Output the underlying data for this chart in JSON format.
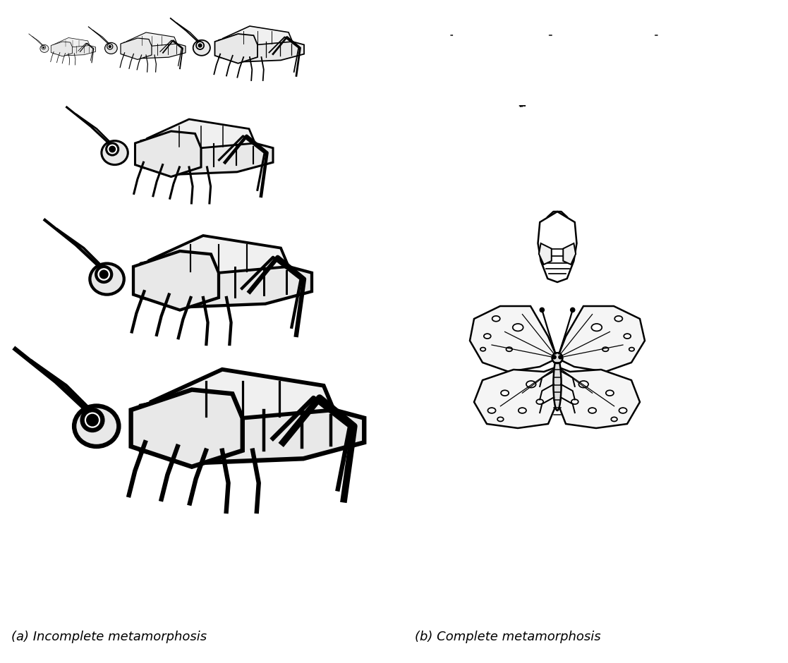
{
  "background_color": "#ffffff",
  "caption_left": "(a) Incomplete metamorphosis",
  "caption_right": "(b) Complete metamorphosis",
  "caption_fontsize": 13,
  "figsize": [
    11.17,
    9.4
  ],
  "dpi": 100,
  "black": "#000000",
  "white": "#ffffff",
  "light_gray": "#e8e8e8"
}
